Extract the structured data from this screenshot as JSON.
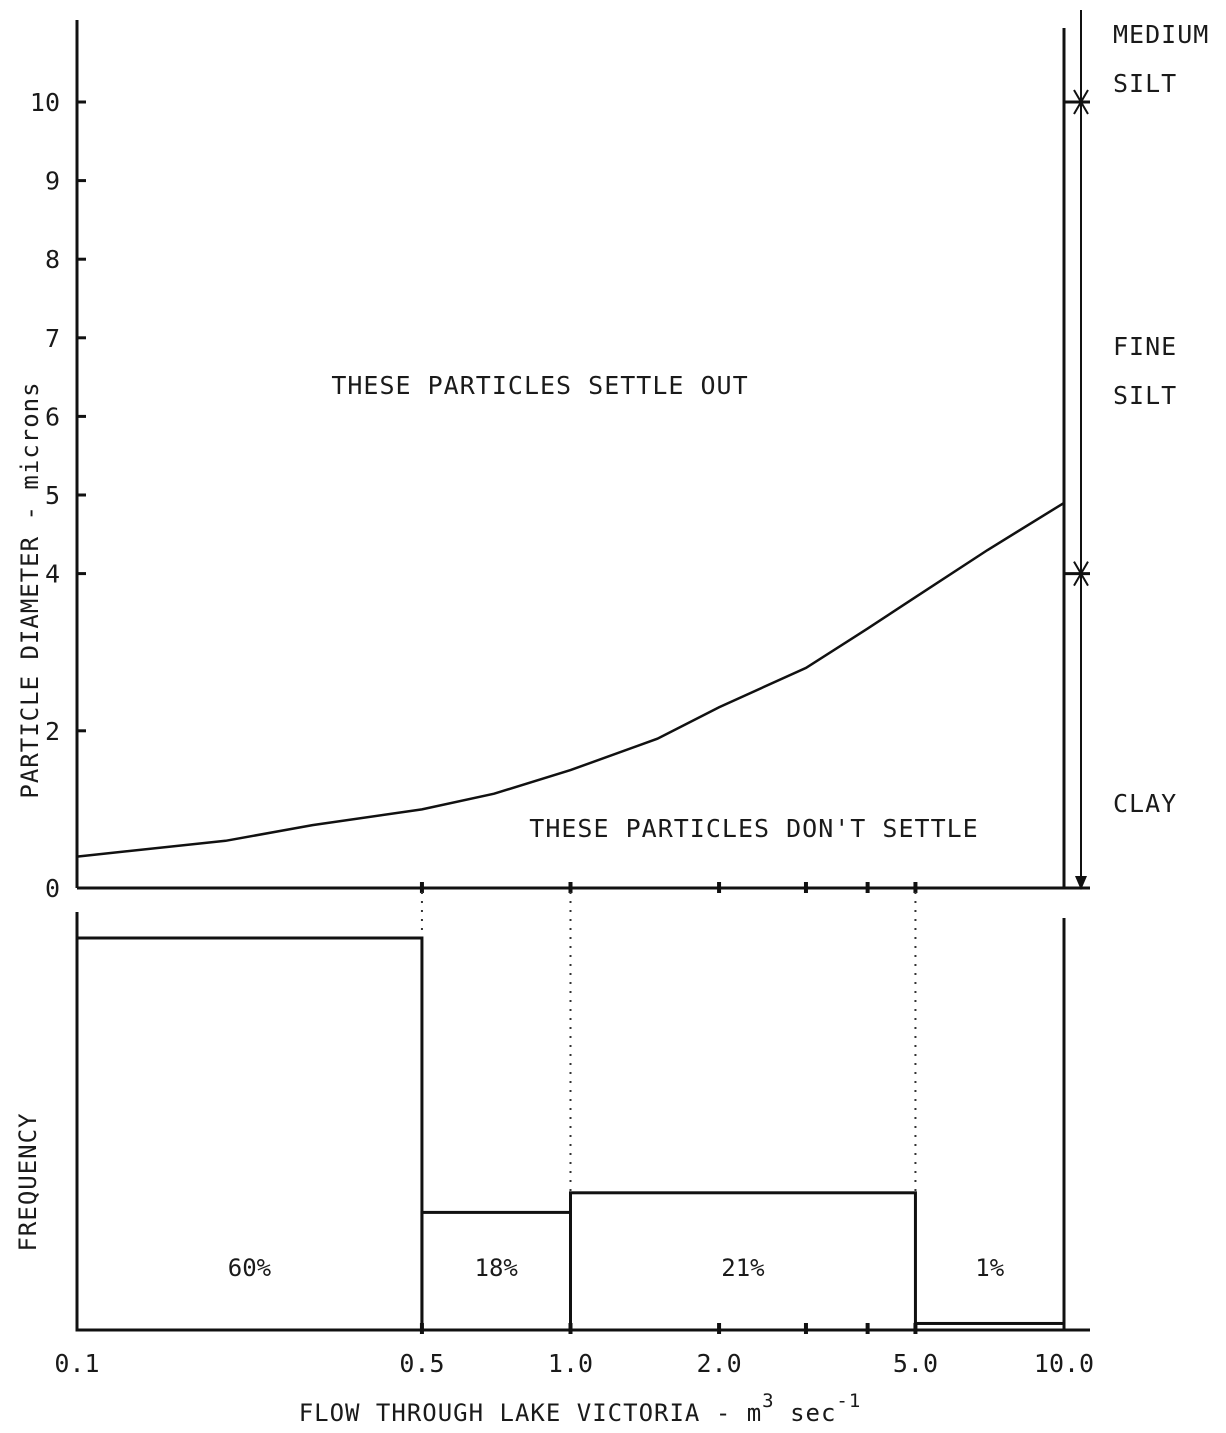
{
  "chart_data": [
    {
      "type": "line",
      "ylabel": "PARTICLE DIAMETER - microns",
      "y_ticks": [
        "0",
        "2",
        "4",
        "5",
        "6",
        "7",
        "8",
        "9",
        "10"
      ],
      "x_scale": "log",
      "xlim": [
        0.1,
        10.0
      ],
      "ylim": [
        0,
        10
      ],
      "series": [
        {
          "x": [
            0.1,
            0.2,
            0.3,
            0.5,
            0.7,
            1.0,
            1.5,
            2.0,
            3.0,
            4.0,
            5.0,
            7.0,
            10.0
          ],
          "values": [
            0.4,
            0.6,
            0.8,
            1.0,
            1.2,
            1.5,
            1.9,
            2.3,
            2.8,
            3.3,
            3.7,
            4.3,
            4.9
          ]
        }
      ],
      "annotations": {
        "upper_region": "THESE PARTICLES SETTLE OUT",
        "lower_region": "THESE PARTICLES DON'T SETTLE"
      },
      "size_classes": [
        {
          "lines": [
            "MEDIUM",
            "SILT"
          ],
          "from": 10,
          "to": null
        },
        {
          "lines": [
            "FINE",
            "SILT"
          ],
          "from": 4,
          "to": 10
        },
        {
          "lines": [
            "CLAY"
          ],
          "from": 0,
          "to": 4
        }
      ],
      "grid": false
    },
    {
      "type": "bar",
      "ylabel": "FREQUENCY",
      "xlabel": "FLOW THROUGH LAKE VICTORIA - m",
      "xlabel_parts": {
        "base": "FLOW THROUGH LAKE VICTORIA - m",
        "sup1": "3",
        "mid": " sec",
        "sup2": "-1"
      },
      "x_scale": "log",
      "x_ticks": [
        "0.1",
        "0.5",
        "1.0",
        "2.0",
        "5.0",
        "10.0"
      ],
      "bins": [
        {
          "from": 0.1,
          "to": 0.5,
          "value": 60,
          "label": "60%"
        },
        {
          "from": 0.5,
          "to": 1.0,
          "value": 18,
          "label": "18%"
        },
        {
          "from": 1.0,
          "to": 5.0,
          "value": 21,
          "label": "21%"
        },
        {
          "from": 5.0,
          "to": 10.0,
          "value": 1,
          "label": "1%"
        }
      ],
      "grid": false
    }
  ]
}
